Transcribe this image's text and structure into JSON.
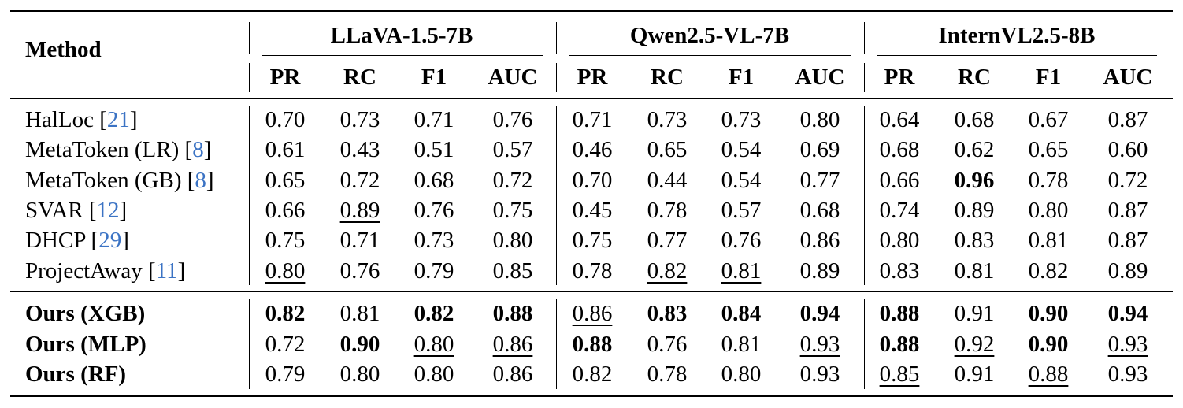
{
  "table": {
    "method_header": "Method",
    "models": [
      "LLaVA-1.5-7B",
      "Qwen2.5-VL-7B",
      "InternVL2.5-8B"
    ],
    "metrics": [
      "PR",
      "RC",
      "F1",
      "AUC"
    ],
    "rows": [
      {
        "name": "HalLoc",
        "cite": "21",
        "values": [
          "0.70",
          "0.73",
          "0.71",
          "0.76",
          "0.71",
          "0.73",
          "0.73",
          "0.80",
          "0.64",
          "0.68",
          "0.67",
          "0.87"
        ]
      },
      {
        "name": "MetaToken (LR)",
        "cite": "8",
        "values": [
          "0.61",
          "0.43",
          "0.51",
          "0.57",
          "0.46",
          "0.65",
          "0.54",
          "0.69",
          "0.68",
          "0.62",
          "0.65",
          "0.60"
        ]
      },
      {
        "name": "MetaToken (GB)",
        "cite": "8",
        "values": [
          "0.65",
          "0.72",
          "0.68",
          "0.72",
          "0.70",
          "0.44",
          "0.54",
          "0.77",
          "0.66",
          "0.96",
          "0.78",
          "0.72"
        ]
      },
      {
        "name": "SVAR",
        "cite": "12",
        "values": [
          "0.66",
          "0.89",
          "0.76",
          "0.75",
          "0.45",
          "0.78",
          "0.57",
          "0.68",
          "0.74",
          "0.89",
          "0.80",
          "0.87"
        ]
      },
      {
        "name": "DHCP",
        "cite": "29",
        "values": [
          "0.75",
          "0.71",
          "0.73",
          "0.80",
          "0.75",
          "0.77",
          "0.76",
          "0.86",
          "0.80",
          "0.83",
          "0.81",
          "0.87"
        ]
      },
      {
        "name": "ProjectAway",
        "cite": "11",
        "values": [
          "0.80",
          "0.76",
          "0.79",
          "0.85",
          "0.78",
          "0.82",
          "0.81",
          "0.89",
          "0.83",
          "0.81",
          "0.82",
          "0.89"
        ]
      },
      {
        "name": "Ours (XGB)",
        "cite": "",
        "values": [
          "0.82",
          "0.81",
          "0.82",
          "0.88",
          "0.86",
          "0.83",
          "0.84",
          "0.94",
          "0.88",
          "0.91",
          "0.90",
          "0.94"
        ]
      },
      {
        "name": "Ours (MLP)",
        "cite": "",
        "values": [
          "0.72",
          "0.90",
          "0.80",
          "0.86",
          "0.88",
          "0.76",
          "0.81",
          "0.93",
          "0.88",
          "0.92",
          "0.90",
          "0.93"
        ]
      },
      {
        "name": "Ours (RF)",
        "cite": "",
        "values": [
          "0.79",
          "0.80",
          "0.80",
          "0.86",
          "0.82",
          "0.78",
          "0.80",
          "0.93",
          "0.85",
          "0.91",
          "0.88",
          "0.93"
        ]
      }
    ],
    "bold": [
      [
        2,
        9
      ],
      [
        6,
        0
      ],
      [
        6,
        2
      ],
      [
        6,
        3
      ],
      [
        6,
        5
      ],
      [
        6,
        6
      ],
      [
        6,
        7
      ],
      [
        6,
        8
      ],
      [
        6,
        10
      ],
      [
        6,
        11
      ],
      [
        7,
        1
      ],
      [
        7,
        4
      ],
      [
        7,
        8
      ],
      [
        7,
        10
      ]
    ],
    "underline": [
      [
        3,
        1
      ],
      [
        5,
        0
      ],
      [
        5,
        5
      ],
      [
        5,
        6
      ],
      [
        6,
        4
      ],
      [
        7,
        2
      ],
      [
        7,
        3
      ],
      [
        7,
        7
      ],
      [
        7,
        9
      ],
      [
        7,
        11
      ],
      [
        8,
        8
      ],
      [
        8,
        10
      ]
    ]
  }
}
